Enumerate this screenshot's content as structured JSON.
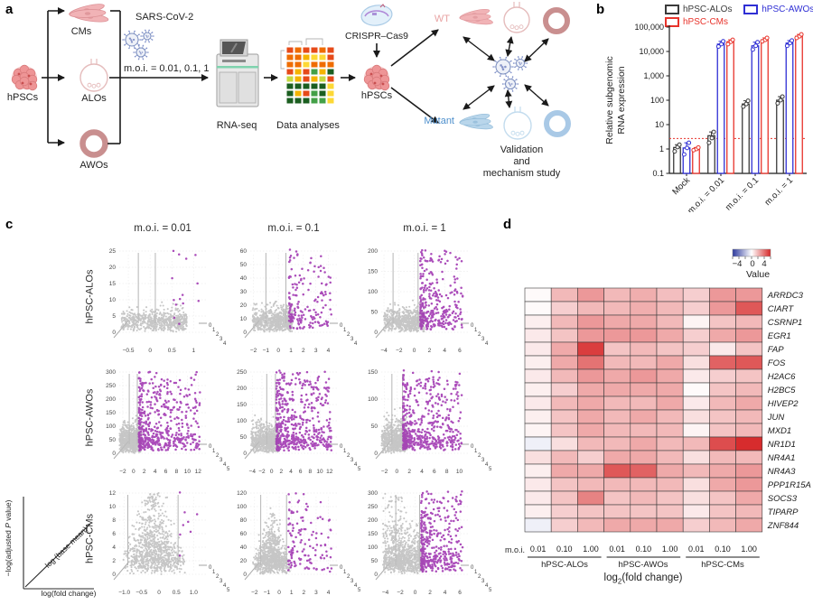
{
  "panels": {
    "a": "a",
    "b": "b",
    "c": "c",
    "d": "d"
  },
  "panel_a": {
    "hpscs_left": "hPSCs",
    "cms": "CMs",
    "alos": "ALOs",
    "awos": "AWOs",
    "sars": "SARS-CoV-2",
    "moi": "m.o.i. = 0.01, 0.1, 1",
    "rnaseq": "RNA-seq",
    "data_analyses": "Data analyses",
    "crispr": "CRISPR–Cas9",
    "hpscs_right": "hPSCs",
    "wt": "WT",
    "mutant": "Mutant",
    "validation": [
      "Validation",
      "and",
      "mechanism study"
    ],
    "wt_color": "#e8a3a3",
    "mutant_color": "#4d8fcc"
  },
  "chart_data": [
    {
      "id": "b",
      "type": "bar",
      "yscale": "log",
      "ylim": [
        0.1,
        100000
      ],
      "ylabel_lines": [
        "Relative subgenomic",
        "RNA expression"
      ],
      "yticks": [
        {
          "v": 100000,
          "label": "100,000"
        },
        {
          "v": 10000,
          "label": "10,000"
        },
        {
          "v": 1000,
          "label": "1,000"
        },
        {
          "v": 100,
          "label": "100"
        },
        {
          "v": 10,
          "label": "10"
        },
        {
          "v": 1,
          "label": "1"
        },
        {
          "v": 0.1,
          "label": "0.1"
        }
      ],
      "categories": [
        "Mock",
        "m.o.i. = 0.01",
        "m.o.i. = 0.1",
        "m.o.i. = 1"
      ],
      "series": [
        {
          "name": "hPSC-ALOs",
          "color": "#3a3a3a",
          "values": [
            1.15,
            3.5,
            70,
            100
          ],
          "points": [
            [
              0.8,
              1.2,
              1.5
            ],
            [
              1.8,
              2.8,
              5.0
            ],
            [
              55,
              70,
              95
            ],
            [
              75,
              100,
              140
            ]
          ]
        },
        {
          "name": "hPSC-AWOs",
          "color": "#2f2fd4",
          "values": [
            1.1,
            20000,
            17000,
            22000
          ],
          "points": [
            [
              0.6,
              1.1,
              1.8
            ],
            [
              16000,
              20000,
              26000
            ],
            [
              12000,
              17000,
              24000
            ],
            [
              17000,
              22000,
              28000
            ]
          ]
        },
        {
          "name": "hPSC-CMs",
          "color": "#e8332b",
          "values": [
            1.0,
            25000,
            30000,
            42000
          ],
          "points": [
            [
              0.9,
              1.0,
              1.15
            ],
            [
              20000,
              25000,
              30000
            ],
            [
              26000,
              30000,
              36000
            ],
            [
              36000,
              42000,
              50000
            ]
          ]
        }
      ],
      "baseline_dashed": {
        "y": 2.7,
        "color": "#e8332b"
      }
    },
    {
      "id": "c",
      "type": "scatter",
      "variant": "3d_volcano_grid",
      "col_titles": [
        "m.o.i. = 0.01",
        "m.o.i. = 0.1",
        "m.o.i. = 1"
      ],
      "row_labels": [
        "hPSC-ALOs",
        "hPSC-AWOs",
        "hPSC-CMs"
      ],
      "colors": {
        "nonsignificant": "#bdbdbd",
        "significant": "#a23ab3"
      },
      "axis_legend": {
        "y_pre": "−log(adjusted ",
        "y_italic": "P",
        "y_post": " value)",
        "diagonal": "log (base mean)",
        "x": "log(fold change)"
      },
      "plots": [
        {
          "row": 0,
          "col": 0,
          "yticks": [
            0,
            5,
            10,
            15,
            20,
            25
          ],
          "xticks": [
            -0.5,
            0,
            0.5,
            1
          ],
          "xtick_labels": [
            "−0.5",
            "0",
            "0.5",
            "1"
          ],
          "xlim": [
            -0.75,
            1.2
          ],
          "zticks": [
            0,
            1,
            2,
            3,
            4
          ],
          "thresholds": [
            -0.27,
            0.12
          ],
          "n_gray": 650,
          "n_sig": 14,
          "gray_h": 5,
          "profile": "wedge",
          "gray_xmax": 0.85,
          "sig_xmin": 0.5,
          "sig_pow": 1.4
        },
        {
          "row": 0,
          "col": 1,
          "yticks": [
            0,
            10,
            20,
            30,
            40,
            50,
            60
          ],
          "xticks": [
            -2,
            -1,
            0,
            1,
            2,
            3,
            4
          ],
          "xtick_labels": [
            "−2",
            "−1",
            "0",
            "1",
            "2",
            "3",
            "4"
          ],
          "xlim": [
            -2.4,
            4.4
          ],
          "zticks": [
            0,
            1,
            2,
            3,
            4
          ],
          "thresholds": [
            -1.0,
            0.6
          ],
          "n_gray": 700,
          "n_sig": 170,
          "gray_h": 6,
          "profile": "wedge",
          "gray_xmax": 1.15,
          "sig_xmin": 0.85,
          "sig_pow": 2.0
        },
        {
          "row": 0,
          "col": 2,
          "yticks": [
            0,
            50,
            100,
            150,
            200
          ],
          "xticks": [
            -4,
            -2,
            0,
            2,
            4,
            6
          ],
          "xtick_labels": [
            "−4",
            "−2",
            "0",
            "2",
            "4",
            "6"
          ],
          "xlim": [
            -4.6,
            6.6
          ],
          "zticks": [
            0,
            1,
            2,
            3,
            4
          ],
          "thresholds": [
            -2.8,
            0.5
          ],
          "n_gray": 700,
          "n_sig": 320,
          "gray_h": 6,
          "profile": "wedge",
          "gray_xmax": 1.3,
          "sig_xmin": 0.8,
          "sig_pow": 2.2
        },
        {
          "row": 1,
          "col": 0,
          "yticks": [
            0,
            50,
            100,
            150,
            200,
            250,
            300
          ],
          "xticks": [
            -2,
            0,
            2,
            4,
            6,
            8,
            10,
            12
          ],
          "xtick_labels": [
            "−2",
            "0",
            "2",
            "4",
            "6",
            "8",
            "10",
            "12"
          ],
          "xlim": [
            -3,
            12.8
          ],
          "zticks": [
            0,
            1,
            2,
            3,
            4,
            5
          ],
          "thresholds": [
            -0.8,
            0.7
          ],
          "n_gray": 750,
          "n_sig": 520,
          "gray_h": 8,
          "profile": "wedge",
          "gray_xmax": 1.5,
          "sig_xmin": 1.0,
          "sig_pow": 2.4
        },
        {
          "row": 1,
          "col": 1,
          "yticks": [
            0,
            50,
            100,
            150,
            200,
            250
          ],
          "xticks": [
            -4,
            -2,
            0,
            2,
            4,
            6,
            8,
            10,
            12
          ],
          "xtick_labels": [
            "−4",
            "−2",
            "0",
            "2",
            "4",
            "6",
            "8",
            "10",
            "12"
          ],
          "xlim": [
            -4.8,
            12.8
          ],
          "zticks": [
            0,
            1,
            2,
            3,
            4,
            5
          ],
          "thresholds": [
            -1.0,
            0.8
          ],
          "n_gray": 750,
          "n_sig": 520,
          "gray_h": 8,
          "profile": "wedge",
          "gray_xmax": 1.6,
          "sig_xmin": 1.0,
          "sig_pow": 2.4
        },
        {
          "row": 1,
          "col": 2,
          "yticks": [
            0,
            50,
            100,
            150
          ],
          "xticks": [
            -2,
            0,
            2,
            4,
            6,
            8,
            10
          ],
          "xtick_labels": [
            "−2",
            "0",
            "2",
            "4",
            "6",
            "8",
            "10"
          ],
          "xlim": [
            -2.8,
            10.8
          ],
          "zticks": [
            0,
            1,
            2,
            3,
            4,
            5
          ],
          "thresholds": [
            -0.8,
            0.9
          ],
          "n_gray": 750,
          "n_sig": 500,
          "gray_h": 9,
          "profile": "wedge",
          "gray_xmax": 1.7,
          "sig_xmin": 1.0,
          "sig_pow": 2.2
        },
        {
          "row": 2,
          "col": 0,
          "yticks": [
            0,
            2,
            4,
            6,
            8,
            10,
            12
          ],
          "xticks": [
            -1,
            -0.5,
            0,
            0.5,
            1
          ],
          "xtick_labels": [
            "−1.0",
            "−0.5",
            "0",
            "0.5",
            "1.0"
          ],
          "xlim": [
            -1.2,
            1.25
          ],
          "zticks": [
            0,
            1,
            2,
            3,
            4,
            5
          ],
          "thresholds": [
            -0.9,
            0.55
          ],
          "n_gray": 900,
          "n_sig": 8,
          "gray_h": 20,
          "profile": "vee",
          "gray_xmax": 0.75,
          "sig_xmin": 0.55,
          "sig_pow": 1.2
        },
        {
          "row": 2,
          "col": 1,
          "yticks": [
            0,
            20,
            40,
            60,
            80,
            100,
            120
          ],
          "xticks": [
            -2,
            -1,
            0,
            1,
            2,
            3,
            4
          ],
          "xtick_labels": [
            "−2",
            "−1",
            "0",
            "1",
            "2",
            "3",
            "4"
          ],
          "xlim": [
            -2.5,
            4.4
          ],
          "zticks": [
            0,
            1,
            2,
            3,
            4,
            5
          ],
          "thresholds": [
            -1.5,
            0.6
          ],
          "n_gray": 850,
          "n_sig": 130,
          "gray_h": 12,
          "profile": "vee",
          "gray_xmax": 1.0,
          "sig_xmin": 0.75,
          "sig_pow": 2.0
        },
        {
          "row": 2,
          "col": 2,
          "yticks": [
            0,
            50,
            100,
            150,
            200,
            250,
            300
          ],
          "xticks": [
            -4,
            -2,
            0,
            2,
            4,
            6
          ],
          "xtick_labels": [
            "−4",
            "−2",
            "0",
            "2",
            "4",
            "6"
          ],
          "xlim": [
            -4.8,
            6.6
          ],
          "zticks": [
            0,
            1,
            2,
            3,
            4,
            5
          ],
          "thresholds": [
            -2.6,
            0.6
          ],
          "n_gray": 850,
          "n_sig": 380,
          "gray_h": 14,
          "profile": "tall_left",
          "gray_xmax": 1.1,
          "sig_xmin": 0.8,
          "sig_pow": 2.3
        }
      ]
    },
    {
      "id": "d",
      "type": "heatmap",
      "value_label": "Value",
      "scale": {
        "min": -4,
        "max": 4,
        "ticks": [
          "−4",
          "0",
          "4"
        ]
      },
      "moi_label": "m.o.i.",
      "col_groups": [
        "hPSC-ALOs",
        "hPSC-AWOs",
        "hPSC-CMs"
      ],
      "moi_cols": [
        "0.01",
        "0.10",
        "1.00"
      ],
      "xlabel": {
        "pre": "log",
        "sub": "2",
        "post": "(fold change)"
      },
      "colors": {
        "positive": "#d62728",
        "negative": "#2d3a9e"
      },
      "genes": [
        "ARRDC3",
        "CIART",
        "CSRNP1",
        "EGR1",
        "FAP",
        "FOS",
        "H2AC6",
        "H2BC5",
        "HIVEP2",
        "JUN",
        "MXD1",
        "NR1D1",
        "NR4A1",
        "NR4A3",
        "PPP1R15A",
        "SOCS3",
        "TIPARP",
        "ZNF844"
      ],
      "values": [
        [
          0.1,
          1.3,
          1.9,
          1.3,
          1.5,
          1.2,
          0.9,
          1.9,
          1.9
        ],
        [
          0.1,
          0.9,
          1.3,
          1.3,
          1.5,
          1.3,
          0.9,
          1.9,
          3.1
        ],
        [
          0.3,
          1.3,
          1.9,
          1.6,
          1.6,
          1.3,
          0.2,
          1.1,
          1.3
        ],
        [
          0.4,
          1.1,
          1.9,
          1.9,
          1.9,
          1.6,
          0.9,
          1.6,
          1.9
        ],
        [
          0.4,
          1.6,
          3.6,
          1.1,
          1.3,
          1.1,
          0.9,
          0.4,
          1.1
        ],
        [
          0.3,
          1.6,
          2.6,
          1.3,
          1.3,
          1.6,
          0.6,
          2.9,
          3.1
        ],
        [
          0.4,
          1.3,
          1.9,
          1.6,
          1.9,
          1.6,
          0.4,
          0.9,
          1.1
        ],
        [
          0.3,
          0.9,
          1.6,
          1.6,
          1.6,
          1.6,
          0.1,
          1.1,
          1.3
        ],
        [
          0.4,
          1.3,
          1.6,
          1.3,
          1.3,
          1.6,
          0.4,
          1.3,
          1.6
        ],
        [
          0.3,
          1.1,
          1.6,
          1.3,
          1.6,
          1.3,
          0.6,
          1.1,
          1.3
        ],
        [
          0.2,
          1.1,
          1.6,
          1.3,
          1.3,
          1.3,
          0.2,
          1.1,
          1.3
        ],
        [
          -0.3,
          0.6,
          1.3,
          1.3,
          1.6,
          1.3,
          1.3,
          3.3,
          3.9
        ],
        [
          0.6,
          1.3,
          0.9,
          1.6,
          1.6,
          1.3,
          0.6,
          1.3,
          1.3
        ],
        [
          0.3,
          1.6,
          1.6,
          3.1,
          2.9,
          1.6,
          1.3,
          1.6,
          1.9
        ],
        [
          0.4,
          1.1,
          1.3,
          1.3,
          1.3,
          1.3,
          0.6,
          1.6,
          1.9
        ],
        [
          0.4,
          1.1,
          2.3,
          1.1,
          1.3,
          1.1,
          0.6,
          1.1,
          1.6
        ],
        [
          0.3,
          0.9,
          1.1,
          1.1,
          1.1,
          1.1,
          0.4,
          1.1,
          1.3
        ],
        [
          -0.3,
          0.9,
          1.3,
          1.6,
          1.6,
          1.6,
          0.9,
          1.3,
          1.6
        ]
      ]
    }
  ]
}
